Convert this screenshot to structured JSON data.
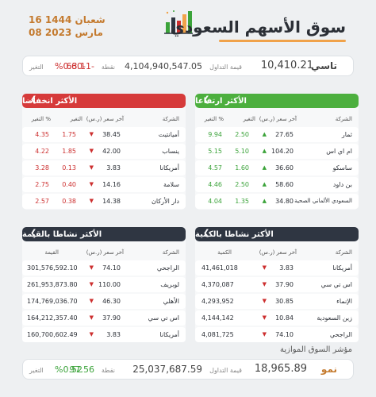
{
  "header": {
    "title": "سوق الأسهم السعودي",
    "date_hijri": "16 شعبان 1444",
    "date_gregorian": "08 مارس 2023"
  },
  "tasi": {
    "label": "تاسي",
    "value": "10,410.21",
    "turnover_label": "قيمة التداول",
    "turnover": "4,104,940,547.05",
    "points_label": "نقطة",
    "points": "63.11-",
    "change_label": "التغير",
    "change": "%0.60-"
  },
  "top_gainers": {
    "title": "الأكثر ارتفاعا",
    "headers": {
      "company": "الشركة",
      "last_price": "آخر سعر (ر.س)",
      "change": "التغير",
      "change_pct": "التغير %"
    },
    "rows": [
      {
        "company": "ثمار",
        "price": "27.65",
        "change": "2.50",
        "pct": "9.94"
      },
      {
        "company": "ام اي اس",
        "price": "104.20",
        "change": "5.10",
        "pct": "5.15"
      },
      {
        "company": "ساسكو",
        "price": "36.60",
        "change": "1.60",
        "pct": "4.57"
      },
      {
        "company": "بن داود",
        "price": "58.60",
        "change": "2.50",
        "pct": "4.46"
      },
      {
        "company": "السعودي الألماني الصحية",
        "price": "34.80",
        "change": "1.35",
        "pct": "4.04"
      }
    ]
  },
  "top_losers": {
    "title": "الأكثر انخفاضا",
    "headers": {
      "company": "الشركة",
      "last_price": "آخر سعر (ر.س)",
      "change": "التغير",
      "change_pct": "التغير %"
    },
    "rows": [
      {
        "company": "أميانتيت",
        "price": "38.45",
        "change": "1.75",
        "pct": "4.35"
      },
      {
        "company": "ينساب",
        "price": "42.00",
        "change": "1.85",
        "pct": "4.22"
      },
      {
        "company": "أمريكانا",
        "price": "3.83",
        "change": "0.13",
        "pct": "3.28"
      },
      {
        "company": "سلامة",
        "price": "14.16",
        "change": "0.40",
        "pct": "2.75"
      },
      {
        "company": "دار الأركان",
        "price": "14.38",
        "change": "0.38",
        "pct": "2.57"
      }
    ]
  },
  "most_active_volume": {
    "title": "الأكثر نشاطا بالكمية",
    "headers": {
      "company": "الشركة",
      "last_price": "آخر سعر (ر.س)",
      "quantity": "الكمية"
    },
    "rows": [
      {
        "company": "أمريكانا",
        "price": "3.83",
        "value": "41,461,018"
      },
      {
        "company": "اس تي سي",
        "price": "37.90",
        "value": "4,370,087"
      },
      {
        "company": "الإنماء",
        "price": "30.85",
        "value": "4,293,952"
      },
      {
        "company": "زين السعودية",
        "price": "10.84",
        "value": "4,144,142"
      },
      {
        "company": "الراجحي",
        "price": "74.10",
        "value": "4,081,725"
      }
    ]
  },
  "most_active_value": {
    "title": "الأكثر نشاطا بالقيمة",
    "headers": {
      "company": "الشركة",
      "last_price": "آخر سعر (ر.س)",
      "value": "القيمة"
    },
    "rows": [
      {
        "company": "الراجحي",
        "price": "74.10",
        "value": "301,576,592.10"
      },
      {
        "company": "لوبريف",
        "price": "110.00",
        "value": "261,953,873.80"
      },
      {
        "company": "الأهلي",
        "price": "46.30",
        "value": "174,769,036.70"
      },
      {
        "company": "اس تي سي",
        "price": "37.90",
        "value": "164,212,357.40"
      },
      {
        "company": "أمريكانا",
        "price": "3.83",
        "value": "160,700,602.49"
      }
    ]
  },
  "nomu": {
    "section_title": "مؤشر السوق الموازية",
    "label": "نمو",
    "value": "18,965.89",
    "turnover_label": "قيمة التداول",
    "turnover": "25,037,687.59",
    "points_label": "نقطة",
    "points": "97.56",
    "change_label": "التغير",
    "change": "%0.52"
  },
  "colors": {
    "green": "#3ba33a",
    "red": "#cc2e2e",
    "navy": "#2f3642",
    "orange": "#f0a24a"
  },
  "icons": {
    "gain": "up-triangle",
    "loss": "down-triangle",
    "collapse": "chevron-icon"
  }
}
